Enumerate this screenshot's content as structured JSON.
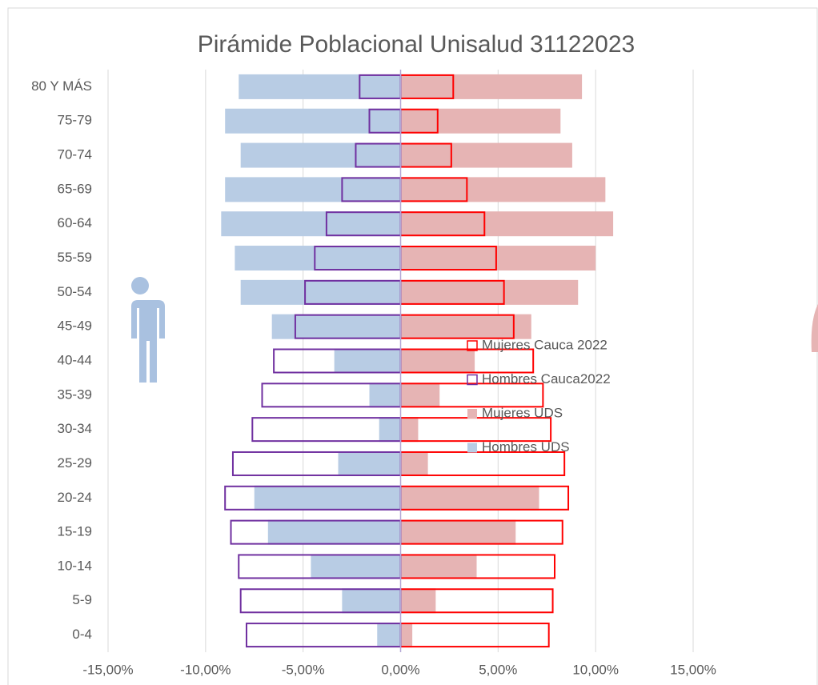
{
  "chart_data": {
    "type": "pyramid",
    "title": "Pirámide Poblacional Unisalud 31122023",
    "categories": [
      "80 Y MÁS",
      "75-79",
      "70-74",
      "65-69",
      "60-64",
      "55-59",
      "50-54",
      "45-49",
      "40-44",
      "35-39",
      "30-34",
      "25-29",
      "20-24",
      "15-19",
      "10-14",
      "5-9",
      "0-4"
    ],
    "series": [
      {
        "name": "Mujeres Cauca 2022",
        "color": "#ff0000",
        "style": "outline",
        "values": [
          2.7,
          1.9,
          2.6,
          3.4,
          4.3,
          4.9,
          5.3,
          5.8,
          6.8,
          7.3,
          7.7,
          8.4,
          8.6,
          8.3,
          7.9,
          7.8,
          7.6
        ]
      },
      {
        "name": "Hombres Cauca2022",
        "color": "#7030a0",
        "style": "outline",
        "values": [
          -2.1,
          -1.6,
          -2.3,
          -3.0,
          -3.8,
          -4.4,
          -4.9,
          -5.4,
          -6.5,
          -7.1,
          -7.6,
          -8.6,
          -9.0,
          -8.7,
          -8.3,
          -8.2,
          -7.9
        ]
      },
      {
        "name": "Mujeres UDS",
        "color": "#e6b4b4",
        "style": "fill",
        "values": [
          9.3,
          8.2,
          8.8,
          10.5,
          10.9,
          10.0,
          9.1,
          6.7,
          3.8,
          2.0,
          0.9,
          1.4,
          7.1,
          5.9,
          3.9,
          1.8,
          0.6
        ]
      },
      {
        "name": "Hombres UDS",
        "color": "#b8cce4",
        "style": "fill",
        "values": [
          -8.3,
          -9.0,
          -8.2,
          -9.0,
          -9.2,
          -8.5,
          -8.2,
          -6.6,
          -3.4,
          -1.6,
          -1.1,
          -3.2,
          -7.5,
          -6.8,
          -4.6,
          -3.0,
          -1.2
        ]
      }
    ],
    "xlim": [
      -15,
      15
    ],
    "xticks": [
      {
        "value": -15,
        "label": "-15,00%"
      },
      {
        "value": -10,
        "label": "-10,00%"
      },
      {
        "value": -5,
        "label": "-5,00%"
      },
      {
        "value": 0,
        "label": "0,00%"
      },
      {
        "value": 5,
        "label": "5,00%"
      },
      {
        "value": 10,
        "label": "10,00%"
      },
      {
        "value": 15,
        "label": "15,00%"
      }
    ],
    "grid": true,
    "legend": "right"
  }
}
